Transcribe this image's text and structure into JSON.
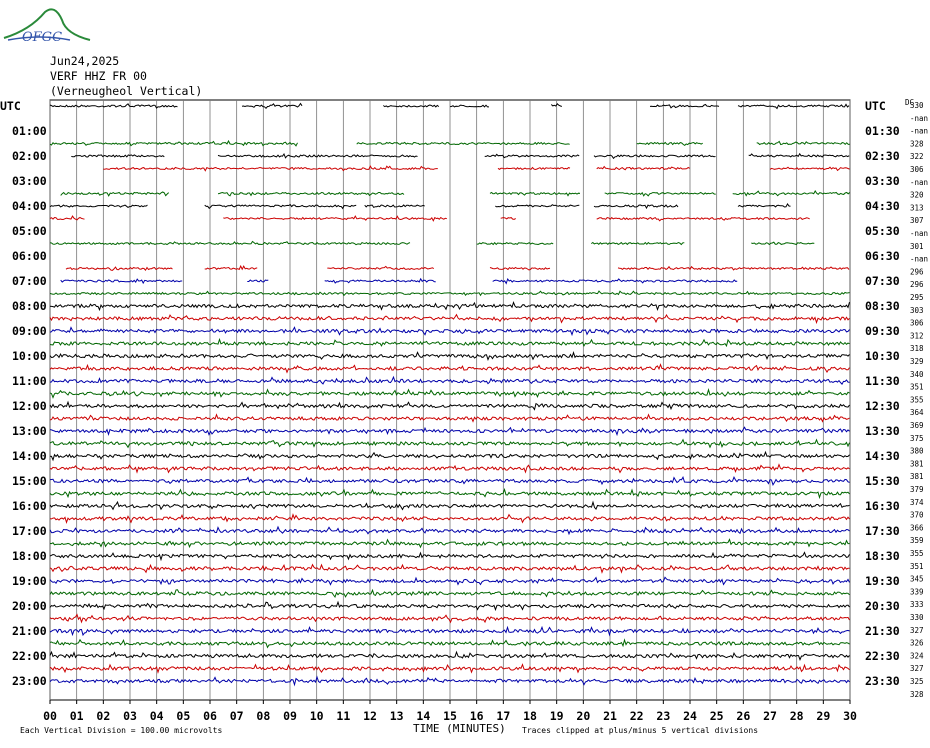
{
  "header": {
    "logo": "OFGC",
    "date": "Jun24,2025",
    "station": "VERF HHZ FR 00",
    "location": "(Verneugheol Vertical)"
  },
  "left_labels": [
    "UTC",
    "01:00",
    "02:00",
    "03:00",
    "04:00",
    "05:00",
    "06:00",
    "07:00",
    "08:00",
    "09:00",
    "10:00",
    "11:00",
    "12:00",
    "13:00",
    "14:00",
    "15:00",
    "16:00",
    "17:00",
    "18:00",
    "19:00",
    "20:00",
    "21:00",
    "22:00",
    "23:00"
  ],
  "right_labels": [
    "UTC",
    "01:30",
    "02:30",
    "03:30",
    "04:30",
    "05:30",
    "06:30",
    "07:30",
    "08:30",
    "09:30",
    "10:30",
    "11:30",
    "12:30",
    "13:30",
    "14:30",
    "15:30",
    "16:30",
    "17:30",
    "18:30",
    "19:30",
    "20:30",
    "21:30",
    "22:30",
    "23:30"
  ],
  "dc_header": "DC",
  "dc_values": [
    "330",
    "-nan",
    "-nan",
    "328",
    "322",
    "306",
    "-nan",
    "320",
    "313",
    "307",
    "-nan",
    "301",
    "-nan",
    "296",
    "296",
    "295",
    "303",
    "306",
    "312",
    "318",
    "329",
    "340",
    "351",
    "355",
    "364",
    "369",
    "375",
    "380",
    "381",
    "381",
    "379",
    "374",
    "370",
    "366",
    "359",
    "355",
    "351",
    "345",
    "339",
    "333",
    "330",
    "327",
    "326",
    "324",
    "327",
    "325",
    "328"
  ],
  "x_labels": [
    "00",
    "01",
    "02",
    "03",
    "04",
    "05",
    "06",
    "07",
    "08",
    "09",
    "10",
    "11",
    "12",
    "13",
    "14",
    "15",
    "16",
    "17",
    "18",
    "19",
    "20",
    "21",
    "22",
    "23",
    "24",
    "25",
    "26",
    "27",
    "28",
    "29",
    "30"
  ],
  "footer": {
    "scale": "Each Vertical Division =  100.00 microvolts",
    "axis_title": "TIME (MINUTES)",
    "clip": "Traces clipped at plus/minus 5 vertical divisions"
  }
}
